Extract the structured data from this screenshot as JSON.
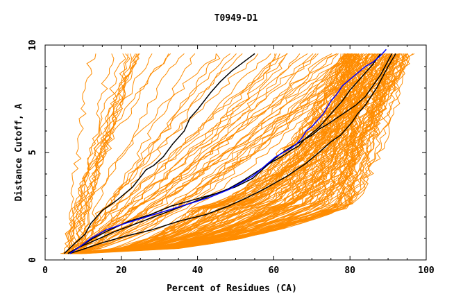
{
  "chart_data": {
    "type": "line",
    "title": "T0949-D1",
    "xlabel": "Percent of Residues (CA)",
    "ylabel": "Distance Cutoff, A",
    "xlim": [
      0,
      100
    ],
    "ylim": [
      0,
      10
    ],
    "x_ticks": [
      0,
      20,
      40,
      60,
      80,
      100
    ],
    "y_ticks": [
      0,
      5,
      10
    ],
    "grid": false,
    "legend": "none",
    "colors": {
      "bundle": "#ff8c00",
      "highlight": "#000000",
      "best": "#0000ff",
      "axis": "#000000"
    },
    "orange_bundle_description_counts": {
      "left_fan_models": 22,
      "middle_models": 30,
      "dense_right_models": 120
    },
    "series": [
      {
        "color": "black",
        "x": [
          5.0,
          8.0,
          10.5,
          12.0,
          15.0,
          19.0,
          23.0,
          26.5,
          28.5,
          31.0,
          33.5,
          36.5,
          38.0,
          40.0,
          43.5,
          46.0,
          49.0,
          52.0,
          55.0
        ],
        "y": [
          0.3,
          0.8,
          1.2,
          1.7,
          2.3,
          2.8,
          3.4,
          4.2,
          4.4,
          4.8,
          5.4,
          6.0,
          6.6,
          7.0,
          7.8,
          8.3,
          8.8,
          9.2,
          9.6
        ]
      },
      {
        "color": "black",
        "x": [
          6.0,
          9.0,
          13.0,
          18.0,
          24.0,
          30.0,
          36.0,
          42.0,
          48.0,
          52.0,
          55.5,
          59.0,
          62.0,
          64.5,
          66.5,
          68.0,
          70.0,
          72.0,
          74.0,
          76.5,
          79.0,
          81.5,
          84.0,
          86.0,
          88.0,
          89.5,
          91.0
        ],
        "y": [
          0.3,
          0.6,
          0.9,
          1.3,
          1.7,
          2.1,
          2.5,
          2.9,
          3.3,
          3.7,
          4.1,
          4.5,
          4.8,
          5.1,
          5.3,
          5.6,
          5.8,
          6.1,
          6.3,
          6.6,
          6.9,
          7.2,
          7.6,
          8.1,
          8.6,
          9.1,
          9.6
        ]
      },
      {
        "color": "black",
        "x": [
          6.5,
          10.0,
          15.0,
          21.0,
          28.0,
          35.0,
          42.0,
          48.0,
          53.0,
          57.5,
          60.5,
          63.5,
          66.0,
          68.5,
          70.5,
          72.5,
          75.0,
          77.5,
          79.0,
          80.5,
          82.0,
          84.0,
          85.5,
          87.0,
          88.5,
          90.0,
          92.0
        ],
        "y": [
          0.3,
          0.5,
          0.8,
          1.1,
          1.4,
          1.8,
          2.1,
          2.5,
          2.9,
          3.3,
          3.6,
          3.9,
          4.2,
          4.5,
          4.8,
          5.1,
          5.5,
          5.8,
          6.1,
          6.4,
          6.8,
          7.2,
          7.6,
          8.0,
          8.5,
          9.0,
          9.6
        ]
      },
      {
        "color": "black",
        "x": [
          6.0,
          9.0,
          12.5,
          17.0,
          22.0,
          27.5,
          33.0,
          39.0,
          45.0,
          50.0,
          54.5,
          57.0,
          59.5,
          61.5,
          64.0,
          66.0,
          68.0,
          70.0,
          72.0,
          74.0,
          76.0,
          78.0,
          80.0,
          82.0,
          84.0,
          86.0,
          88.0
        ],
        "y": [
          0.3,
          0.6,
          1.0,
          1.4,
          1.8,
          2.1,
          2.5,
          2.8,
          3.1,
          3.4,
          3.8,
          4.2,
          4.6,
          4.9,
          5.2,
          5.4,
          5.6,
          5.9,
          6.2,
          6.6,
          7.0,
          7.4,
          7.9,
          8.3,
          8.7,
          9.1,
          9.6
        ]
      },
      {
        "color": "blue",
        "x": [
          6.5,
          9.0,
          12.0,
          16.0,
          21.0,
          26.5,
          32.0,
          37.5,
          43.0,
          48.5,
          51.5,
          54.5,
          56.5,
          58.5,
          60.5,
          62.5,
          64.5,
          66.0,
          67.5,
          68.5,
          70.0,
          71.5,
          73.0,
          74.0,
          75.0,
          76.5,
          78.0,
          80.0,
          82.0,
          84.0,
          86.0,
          88.0,
          89.5
        ],
        "y": [
          0.3,
          0.6,
          1.0,
          1.4,
          1.7,
          2.0,
          2.3,
          2.6,
          2.9,
          3.3,
          3.6,
          3.9,
          4.2,
          4.5,
          4.8,
          5.0,
          5.2,
          5.4,
          5.7,
          6.0,
          6.2,
          6.5,
          6.8,
          7.1,
          7.4,
          7.7,
          8.1,
          8.4,
          8.7,
          9.0,
          9.2,
          9.5,
          9.8
        ]
      }
    ]
  }
}
